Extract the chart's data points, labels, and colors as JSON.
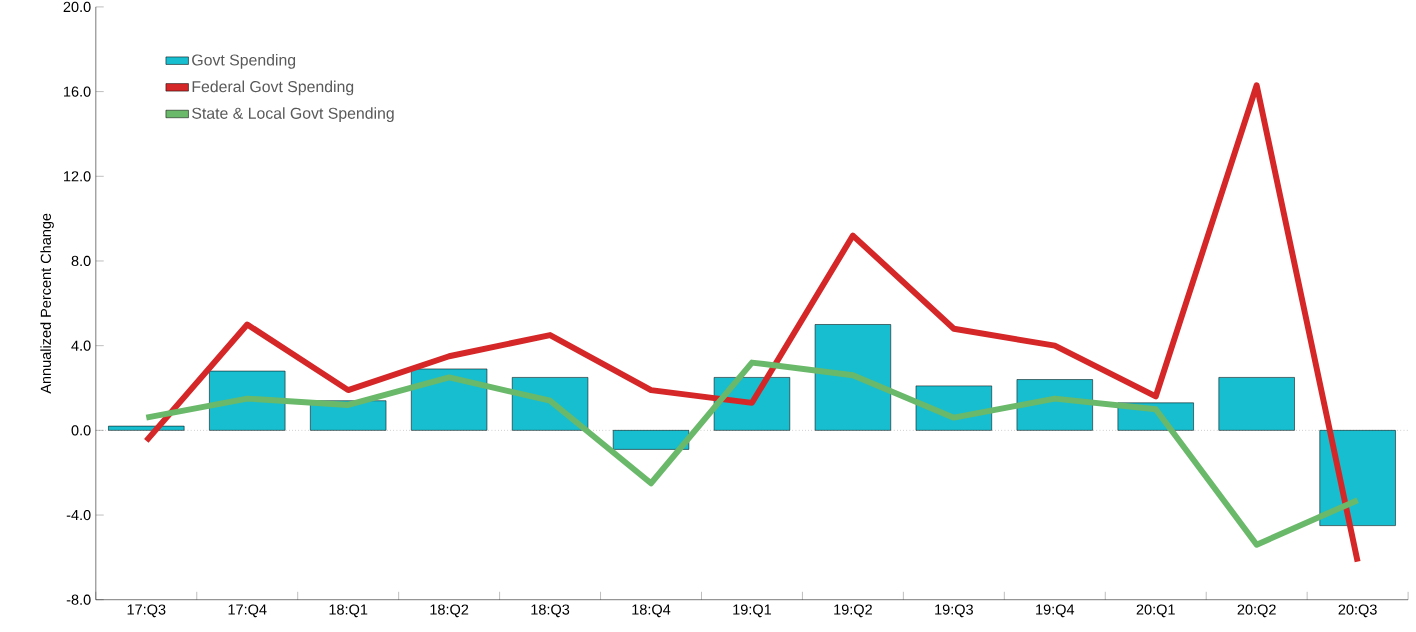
{
  "chart_data": {
    "type": "bar",
    "ylabel": "Annualized Percent Change",
    "categories": [
      "17:Q3",
      "17:Q4",
      "18:Q1",
      "18:Q2",
      "18:Q3",
      "18:Q4",
      "19:Q1",
      "19:Q2",
      "19:Q3",
      "19:Q4",
      "20:Q1",
      "20:Q2",
      "20:Q3"
    ],
    "series": [
      {
        "name": "Govt Spending",
        "color": "#17becf",
        "values": [
          0.2,
          2.8,
          1.4,
          2.9,
          2.5,
          -0.9,
          2.5,
          5.0,
          2.1,
          2.4,
          1.3,
          2.5,
          -4.5
        ]
      },
      {
        "name": "Federal Govt Spending",
        "type": "line",
        "color": "#d62728",
        "values": [
          -0.5,
          5.0,
          1.9,
          3.5,
          4.5,
          1.9,
          1.3,
          9.2,
          4.8,
          4.0,
          1.6,
          16.3,
          -6.2
        ]
      },
      {
        "name": "State & Local Govt Spending",
        "type": "line",
        "color": "#6ab96a",
        "values": [
          0.6,
          1.5,
          1.2,
          2.5,
          1.4,
          -2.5,
          3.2,
          2.6,
          0.6,
          1.5,
          1.0,
          -5.4,
          -3.3
        ]
      }
    ],
    "ylim": [
      -8,
      20
    ],
    "yticks": [
      {
        "value": -8,
        "label": "-8.0"
      },
      {
        "value": -4,
        "label": "-4.0"
      },
      {
        "value": 0,
        "label": "0.0"
      },
      {
        "value": 4,
        "label": "4.0"
      },
      {
        "value": 8,
        "label": "8.0"
      },
      {
        "value": 12,
        "label": "12.0"
      },
      {
        "value": 16,
        "label": "16.0"
      },
      {
        "value": 20,
        "label": "20.0"
      }
    ],
    "ref_lines": [
      {
        "axis": "y",
        "value": 0,
        "color": "#555555",
        "line_style": "dotted"
      }
    ],
    "grid": false,
    "legend": "top left",
    "marker": "none",
    "line_style": "solid"
  }
}
